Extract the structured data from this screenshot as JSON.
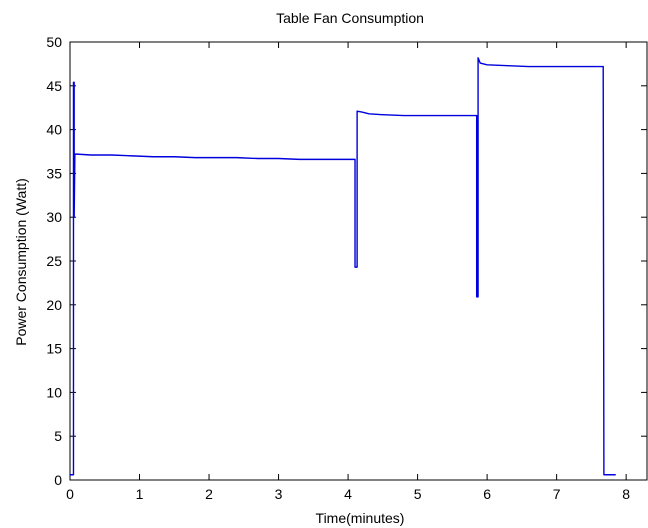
{
  "chart_data": {
    "type": "line",
    "title": "Table Fan Consumption",
    "xlabel": "Time(minutes)",
    "ylabel": "Power Consumption (Watt)",
    "xlim": [
      0,
      8.3
    ],
    "ylim": [
      0,
      50
    ],
    "xticks": [
      0,
      1,
      2,
      3,
      4,
      5,
      6,
      7,
      8
    ],
    "yticks": [
      0,
      5,
      10,
      15,
      20,
      25,
      30,
      35,
      40,
      45,
      50
    ],
    "grid": false,
    "legend": "none",
    "color": "#0000dd",
    "series": [
      {
        "x": [
          0.0,
          0.05,
          0.05,
          0.06,
          0.06,
          0.07,
          0.08,
          0.1,
          0.3,
          0.6,
          0.9,
          1.2,
          1.5,
          1.8,
          2.1,
          2.4,
          2.7,
          3.0,
          3.3,
          3.6,
          3.9,
          4.1,
          4.1,
          4.13,
          4.13,
          4.2,
          4.3,
          4.5,
          4.8,
          5.1,
          5.4,
          5.7,
          5.85,
          5.85,
          5.87,
          5.87,
          5.9,
          6.0,
          6.3,
          6.6,
          6.9,
          7.2,
          7.5,
          7.67,
          7.68,
          7.7,
          7.85
        ],
        "y": [
          0.6,
          0.6,
          45.4,
          45.4,
          30.0,
          37.2,
          37.2,
          37.2,
          37.1,
          37.1,
          37.0,
          36.9,
          36.9,
          36.8,
          36.8,
          36.8,
          36.7,
          36.7,
          36.6,
          36.6,
          36.6,
          36.6,
          24.3,
          24.3,
          42.1,
          42.0,
          41.8,
          41.7,
          41.6,
          41.6,
          41.6,
          41.6,
          41.6,
          20.9,
          20.9,
          48.2,
          47.6,
          47.4,
          47.3,
          47.2,
          47.2,
          47.2,
          47.2,
          47.2,
          0.6,
          0.6,
          0.6
        ]
      }
    ]
  }
}
